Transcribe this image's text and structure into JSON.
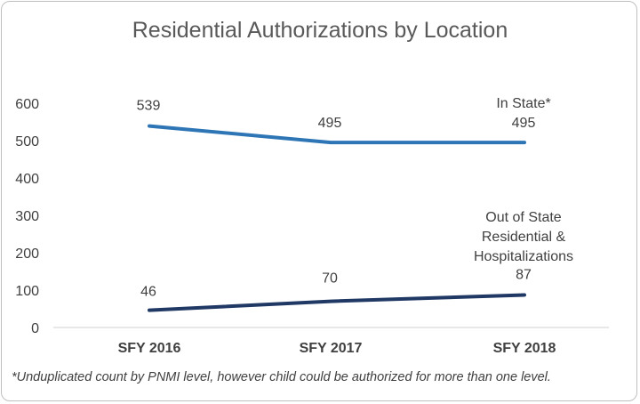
{
  "chart_data": {
    "type": "line",
    "title": "Residential Authorizations by Location",
    "categories": [
      "SFY 2016",
      "SFY 2017",
      "SFY 2018"
    ],
    "ylim": [
      0,
      600
    ],
    "yticks": [
      0,
      100,
      200,
      300,
      400,
      500,
      600
    ],
    "grid": false,
    "series": [
      {
        "name": "In State*",
        "values": [
          539,
          495,
          495
        ],
        "color": "#2e75b6"
      },
      {
        "name": "Out of State Residential & Hospitalizations",
        "name_lines": [
          "Out of State",
          "Residential &",
          "Hospitalizations"
        ],
        "values": [
          46,
          70,
          87
        ],
        "color": "#1f3864"
      }
    ],
    "footnote": "*Unduplicated count by PNMI level, however child could be authorized for more than one level."
  }
}
